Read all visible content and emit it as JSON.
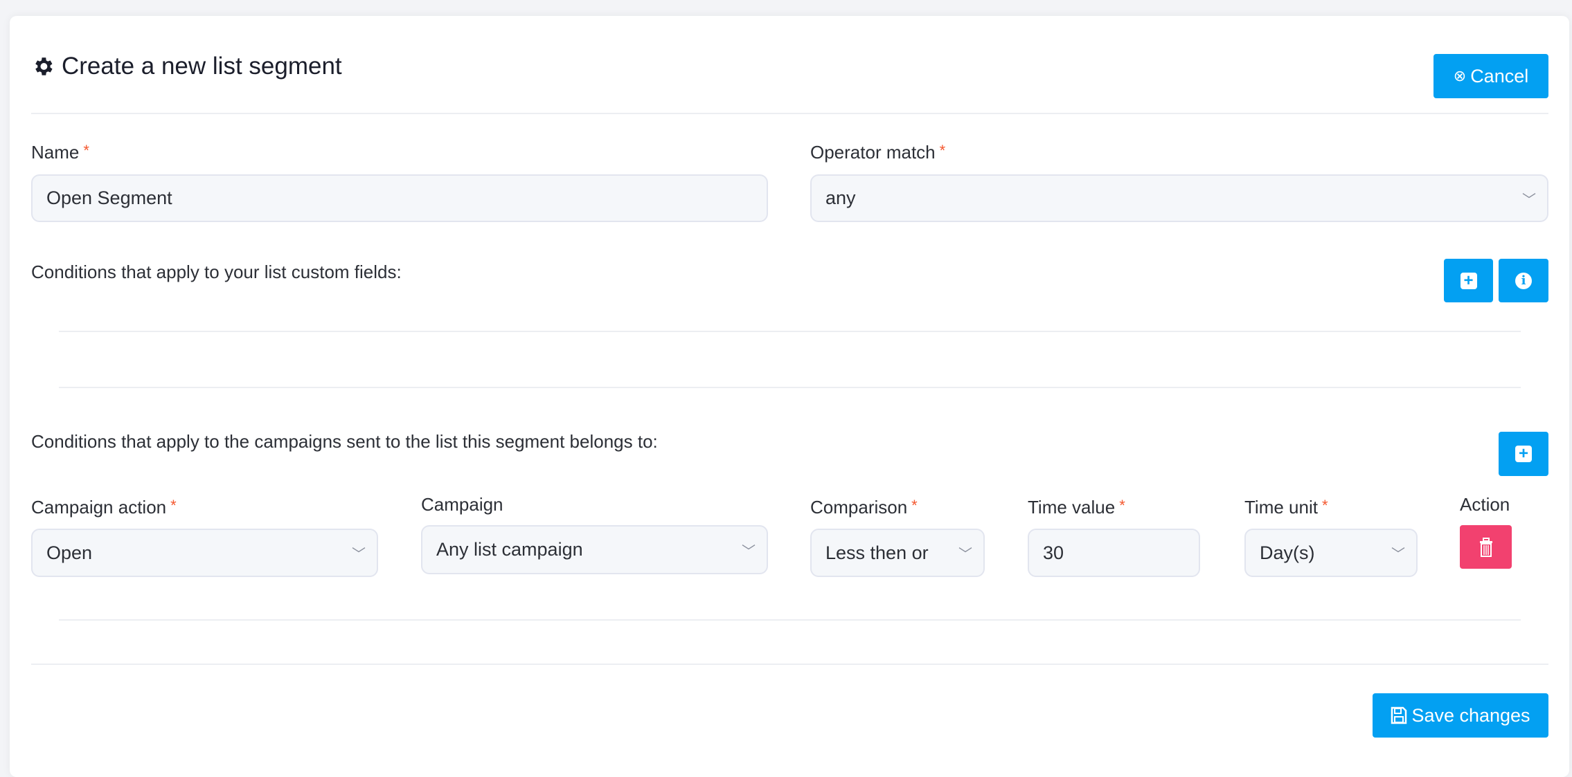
{
  "header": {
    "title": "Create a new list segment",
    "cancel_label": "Cancel"
  },
  "form": {
    "name_label": "Name",
    "name_value": "Open Segment",
    "operator_label": "Operator match",
    "operator_value": "any",
    "custom_fields_text": "Conditions that apply to your list custom fields:",
    "campaigns_text": "Conditions that apply to the campaigns sent to the list this segment belongs to:",
    "required_mark": "*"
  },
  "campaign_condition": {
    "action_label": "Campaign action",
    "action_value": "Open",
    "campaign_label": "Campaign",
    "campaign_value": "Any list campaign",
    "comparison_label": "Comparison",
    "comparison_value": "Less then or",
    "time_value_label": "Time value",
    "time_value": "30",
    "time_unit_label": "Time unit",
    "time_unit_value": "Day(s)",
    "action_col_label": "Action"
  },
  "footer": {
    "save_label": "Save changes"
  },
  "colors": {
    "primary": "#03a0f2",
    "danger": "#f2416f"
  }
}
